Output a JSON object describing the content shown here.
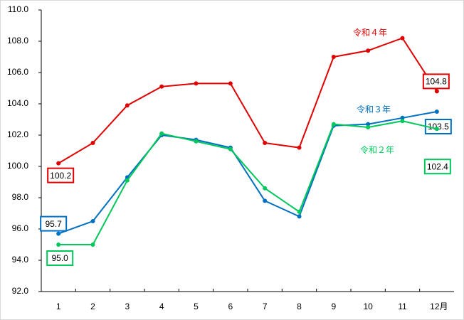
{
  "chart_data": {
    "type": "line",
    "categories": [
      "1",
      "2",
      "3",
      "4",
      "5",
      "6",
      "7",
      "8",
      "9",
      "10",
      "11",
      "12月"
    ],
    "ylim": [
      92,
      110
    ],
    "yticks": [
      {
        "value": 92,
        "label": "92.0"
      },
      {
        "value": 94,
        "label": "94.0"
      },
      {
        "value": 96,
        "label": "96.0"
      },
      {
        "value": 98,
        "label": "98.0"
      },
      {
        "value": 100,
        "label": "100.0"
      },
      {
        "value": 102,
        "label": "102.0"
      },
      {
        "value": 104,
        "label": "104.0"
      },
      {
        "value": 106,
        "label": "106.0"
      },
      {
        "value": 108,
        "label": "108.0"
      },
      {
        "value": 110,
        "label": "110.0"
      }
    ],
    "grid": false,
    "series": [
      {
        "name": "令和４年",
        "color": "#e00000",
        "values": [
          100.2,
          101.5,
          103.9,
          105.1,
          105.3,
          105.3,
          101.5,
          101.2,
          107.0,
          107.4,
          108.2,
          104.8
        ],
        "value_labels": [
          "100.2",
          null,
          null,
          null,
          null,
          null,
          null,
          null,
          null,
          null,
          null,
          "104.8"
        ]
      },
      {
        "name": "令和３年",
        "color": "#0070c0",
        "values": [
          95.7,
          96.5,
          99.3,
          102.0,
          101.7,
          101.2,
          97.8,
          96.8,
          102.6,
          102.7,
          103.1,
          103.5
        ],
        "value_labels": [
          "95.7",
          null,
          null,
          null,
          null,
          null,
          null,
          null,
          null,
          null,
          null,
          "103.5"
        ]
      },
      {
        "name": "令和２年",
        "color": "#00c85a",
        "values": [
          95.0,
          95.0,
          99.1,
          102.1,
          101.6,
          101.1,
          98.6,
          97.1,
          102.7,
          102.5,
          102.9,
          102.4
        ],
        "value_labels": [
          "95.0",
          null,
          null,
          null,
          null,
          null,
          null,
          null,
          null,
          null,
          null,
          "102.4"
        ]
      }
    ]
  }
}
